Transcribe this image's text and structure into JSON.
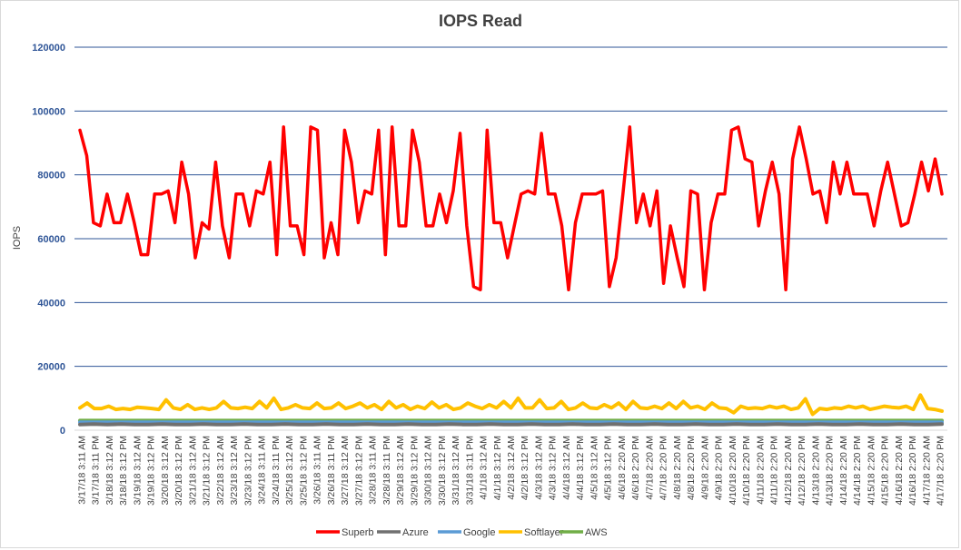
{
  "chart_data": {
    "type": "line",
    "title": "IOPS Read",
    "ylabel": "IOPS",
    "xlabel": "",
    "ylim": [
      0,
      120000
    ],
    "y_ticks": [
      0,
      20000,
      40000,
      60000,
      80000,
      100000,
      120000
    ],
    "grid": true,
    "legend_position": "bottom",
    "x_labels": [
      "3/17/18 3:11 AM",
      "3/17/18 3:11 PM",
      "3/18/18 3:12 AM",
      "3/18/18 3:12 PM",
      "3/19/18 3:12 AM",
      "3/19/18 3:12 PM",
      "3/20/18 3:12 AM",
      "3/20/18 3:12 PM",
      "3/21/18 3:12 AM",
      "3/21/18 3:12 PM",
      "3/22/18 3:12 AM",
      "3/23/18 3:12 AM",
      "3/23/18 3:12 PM",
      "3/24/18 3:11 AM",
      "3/24/18 3:11 PM",
      "3/25/18 3:12 AM",
      "3/25/18 3:12 PM",
      "3/26/18 3:11 AM",
      "3/26/18 3:11 PM",
      "3/27/18 3:12 AM",
      "3/27/18 3:12 PM",
      "3/28/18 3:11 AM",
      "3/28/18 3:11 PM",
      "3/29/18 3:12 AM",
      "3/29/18 3:12 PM",
      "3/30/18 3:12 AM",
      "3/30/18 3:12 PM",
      "3/31/18 3:12 AM",
      "3/31/18 3:11 PM",
      "4/1/18 3:12 AM",
      "4/1/18 3:12 PM",
      "4/2/18 3:12 AM",
      "4/2/18 3:12 PM",
      "4/3/18 3:12 AM",
      "4/3/18 3:12 PM",
      "4/4/18 3:12 AM",
      "4/4/18 3:12 PM",
      "4/5/18 3:12 AM",
      "4/5/18 3:12 PM",
      "4/6/18 2:20 AM",
      "4/6/18 2:20 PM",
      "4/7/18 2:20 AM",
      "4/7/18 2:20 PM",
      "4/8/18 2:20 AM",
      "4/8/18 2:20 PM",
      "4/9/18 2:20 AM",
      "4/9/18 2:20 PM",
      "4/10/18 2:20 AM",
      "4/10/18 2:20 PM",
      "4/11/18 2:20 AM",
      "4/11/18 2:20 PM",
      "4/12/18 2:20 AM",
      "4/12/18 2:20 PM",
      "4/13/18 2:20 AM",
      "4/13/18 2:20 PM",
      "4/14/18 2:20 AM",
      "4/14/18 2:20 PM",
      "4/15/18 2:20 AM",
      "4/15/18 2:20 PM",
      "4/16/18 2:20 AM",
      "4/16/18 2:20 PM",
      "4/17/18 2:20 AM",
      "4/17/18 2:20 PM"
    ],
    "series": [
      {
        "name": "Superb",
        "color": "#ff0000",
        "values": [
          94000,
          86000,
          65000,
          64000,
          74000,
          65000,
          65000,
          74000,
          65000,
          55000,
          55000,
          74000,
          74000,
          75000,
          65000,
          84000,
          74000,
          54000,
          65000,
          63000,
          84000,
          64000,
          54000,
          74000,
          74000,
          64000,
          75000,
          74000,
          84000,
          55000,
          95000,
          64000,
          64000,
          55000,
          95000,
          94000,
          54000,
          65000,
          55000,
          94000,
          84000,
          65000,
          75000,
          74000,
          94000,
          55000,
          95000,
          64000,
          64000,
          94000,
          84000,
          64000,
          64000,
          74000,
          65000,
          75000,
          93000,
          64000,
          45000,
          44000,
          94000,
          65000,
          65000,
          54000,
          64000,
          74000,
          75000,
          74000,
          93000,
          74000,
          74000,
          64000,
          44000,
          65000,
          74000,
          74000,
          74000,
          75000,
          45000,
          54000,
          74000,
          95000,
          65000,
          74000,
          64000,
          75000,
          46000,
          64000,
          54000,
          45000,
          75000,
          74000,
          44000,
          65000,
          74000,
          74000,
          94000,
          95000,
          85000,
          84000,
          64000,
          75000,
          84000,
          74000,
          44000,
          85000,
          95000,
          85000,
          74000,
          75000,
          65000,
          84000,
          74000,
          84000,
          74000,
          74000,
          74000,
          64000,
          75000,
          84000,
          74000,
          64000,
          65000,
          74000,
          84000,
          75000,
          85000,
          74000
        ]
      },
      {
        "name": "Azure",
        "color": "#707070",
        "values": [
          1800,
          1900,
          1800,
          1900,
          1800,
          1800,
          1900,
          1800,
          1800,
          1900,
          1800,
          1800,
          1900,
          1800,
          1800,
          1900,
          1800,
          1800,
          1900,
          1800,
          1800,
          1900,
          1800,
          1800,
          1900,
          1800,
          1800,
          1900,
          1800,
          1800,
          1900,
          1800,
          1800,
          1900,
          1800,
          1800,
          1900,
          1800,
          1800,
          1900,
          1800,
          1800,
          1900,
          1800,
          1800,
          1900,
          1800,
          1800,
          1900,
          1800,
          1800,
          1900,
          1800,
          1800,
          1900,
          1800,
          1800,
          1900,
          1800,
          1800,
          1900,
          1800,
          1800,
          1900
        ]
      },
      {
        "name": "Google",
        "color": "#5b9bd5",
        "values": [
          2500,
          2500,
          2500,
          2500,
          2500,
          2500,
          2500,
          2500,
          2500,
          2500,
          2500,
          2500,
          2500,
          2500,
          2500,
          2500,
          2500,
          2500,
          2500,
          2500,
          2500,
          2500,
          2500,
          2500,
          2500,
          2500,
          2500,
          2500,
          2500,
          2500,
          2500,
          2500,
          2500,
          2500,
          2500,
          2500,
          2500,
          2500,
          2500,
          2500,
          2500,
          2500,
          2500,
          2500,
          2500,
          2500,
          2500,
          2500,
          2500,
          2500,
          2500,
          2500,
          2500,
          2500,
          2500,
          2500,
          2500,
          2500,
          2500,
          2500,
          2500,
          2500,
          2500,
          2500
        ]
      },
      {
        "name": "Softlayer",
        "color": "#ffc000",
        "values": [
          7000,
          8500,
          6800,
          6800,
          7500,
          6500,
          6800,
          6500,
          7200,
          7000,
          6800,
          6500,
          9500,
          7000,
          6500,
          8000,
          6500,
          7000,
          6500,
          7000,
          9000,
          7000,
          6800,
          7200,
          6800,
          9000,
          7000,
          10000,
          6500,
          7000,
          8000,
          7000,
          6800,
          8500,
          6800,
          7000,
          8500,
          6800,
          7500,
          8500,
          7000,
          8000,
          6500,
          9000,
          7000,
          8000,
          6500,
          7500,
          6800,
          8800,
          7000,
          8000,
          6500,
          7000,
          8500,
          7500,
          6800,
          8000,
          7000,
          9000,
          7000,
          10000,
          7000,
          7000,
          9500,
          6800,
          7000,
          9000,
          6500,
          7000,
          8500,
          7000,
          6800,
          8000,
          7000,
          8500,
          6500,
          9000,
          7000,
          6800,
          7500,
          6800,
          8500,
          6800,
          9000,
          7000,
          7500,
          6500,
          8500,
          7000,
          6800,
          5500,
          7500,
          6800,
          7000,
          6800,
          7500,
          7000,
          7500,
          6500,
          7000,
          9800,
          5000,
          6800,
          6500,
          7000,
          6800,
          7500,
          7000,
          7500,
          6500,
          7000,
          7500,
          7200,
          7000,
          7500,
          6500,
          11000,
          6800,
          6500,
          6000
        ]
      },
      {
        "name": "AWS",
        "color": "#70ad47",
        "values": [
          3000,
          3000,
          3000,
          3000,
          3000,
          3000,
          3000,
          3000,
          3000,
          3000,
          3000,
          3000,
          3000,
          3000,
          3000,
          3000,
          3000,
          3000,
          3000,
          3000,
          3000,
          3000,
          3000,
          3000,
          3000,
          3000,
          3000,
          3000,
          3000,
          3000,
          3000,
          3000,
          3000,
          3000,
          3000,
          3000,
          3000,
          3000,
          3000,
          3000,
          3000,
          3000,
          3000,
          3000,
          3000,
          3000,
          3000,
          3000,
          3000,
          3000,
          3000,
          3000,
          3000,
          3000,
          3000,
          3000,
          3000,
          3000,
          3000,
          3000,
          3000,
          3000,
          3000,
          3000
        ]
      }
    ]
  }
}
